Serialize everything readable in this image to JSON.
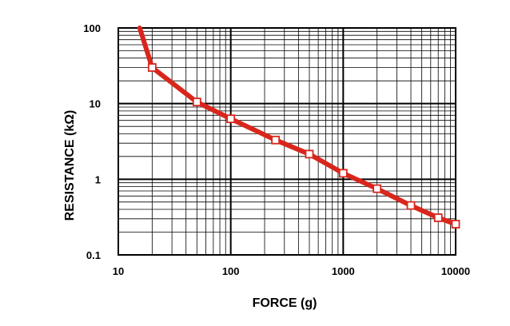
{
  "chart_data": {
    "type": "line",
    "xlabel": "FORCE (g)",
    "ylabel": "RESISTANCE (kΩ)",
    "x_scale": "log",
    "y_scale": "log",
    "xlim": [
      10,
      10000
    ],
    "ylim": [
      0.1,
      100
    ],
    "x_ticks": [
      {
        "value": 10,
        "label": "10"
      },
      {
        "value": 100,
        "label": "100"
      },
      {
        "value": 1000,
        "label": "1000"
      },
      {
        "value": 10000,
        "label": "10000"
      }
    ],
    "y_ticks": [
      {
        "value": 100,
        "label": "100"
      },
      {
        "value": 10,
        "label": "10"
      },
      {
        "value": 1,
        "label": "1"
      },
      {
        "value": 0.1,
        "label": "0.1"
      }
    ],
    "grid": true,
    "legend": "none",
    "line_color": "#d9261c",
    "marker_style": "open-square",
    "curve_start": {
      "x": 15.5,
      "y": 100
    },
    "series": [
      {
        "points": [
          {
            "x": 20,
            "y": 30
          },
          {
            "x": 50,
            "y": 10.5
          },
          {
            "x": 100,
            "y": 6.3
          },
          {
            "x": 250,
            "y": 3.3
          },
          {
            "x": 500,
            "y": 2.15
          },
          {
            "x": 1000,
            "y": 1.2
          },
          {
            "x": 2000,
            "y": 0.75
          },
          {
            "x": 4000,
            "y": 0.45
          },
          {
            "x": 7000,
            "y": 0.31
          },
          {
            "x": 10000,
            "y": 0.255
          }
        ]
      }
    ]
  }
}
